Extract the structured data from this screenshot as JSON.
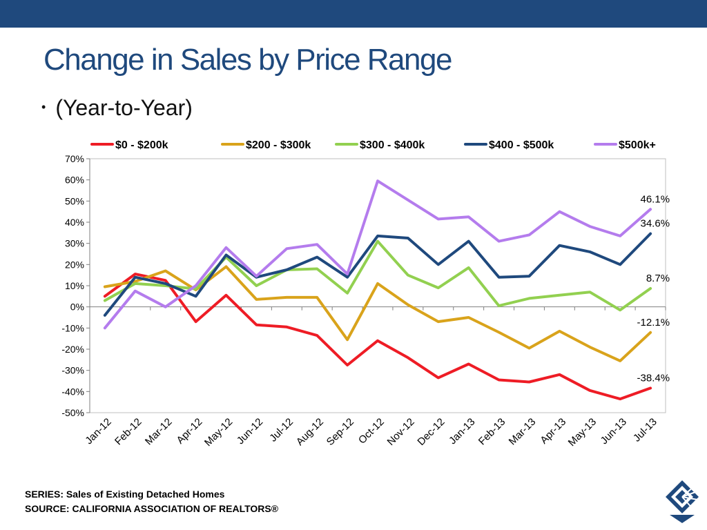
{
  "slide": {
    "title": "Change in Sales by Price Range",
    "bullet": "(Year-to-Year)",
    "footer_series": "SERIES: Sales of Existing Detached Homes",
    "footer_source": "SOURCE:  CALIFORNIA ASSOCIATION OF REALTORS®",
    "logo_icon": "car-logo-icon",
    "colors": {
      "topbar": "#1f497d",
      "title": "#1f497d"
    }
  },
  "chart_data": {
    "type": "line",
    "title": "",
    "xlabel": "",
    "ylabel": "",
    "ylim": [
      -50,
      70
    ],
    "yticks": [
      70,
      60,
      50,
      40,
      30,
      20,
      10,
      0,
      -10,
      -20,
      -30,
      -40,
      -50
    ],
    "ytick_labels": [
      "70%",
      "60%",
      "50%",
      "40%",
      "30%",
      "20%",
      "10%",
      "0%",
      "-10%",
      "-20%",
      "-30%",
      "-40%",
      "-50%"
    ],
    "categories": [
      "Jan-12",
      "Feb-12",
      "Mar-12",
      "Apr-12",
      "May-12",
      "Jun-12",
      "Jul-12",
      "Aug-12",
      "Sep-12",
      "Oct-12",
      "Nov-12",
      "Dec-12",
      "Jan-13",
      "Feb-13",
      "Mar-13",
      "Apr-13",
      "May-13",
      "Jun-13",
      "Jul-13"
    ],
    "legend_position": "top",
    "grid": false,
    "series": [
      {
        "name": "$0 - $200k",
        "color": "#ee1c25",
        "end_label": "-38.4%",
        "values": [
          5,
          15.5,
          12.5,
          -7,
          5.5,
          -8.5,
          -9.5,
          -13.5,
          -27.5,
          -16,
          -24,
          -33.5,
          -27,
          -34.5,
          -35.5,
          -32,
          -39.5,
          -43.5,
          -38.4
        ]
      },
      {
        "name": "$200 - $300k",
        "color": "#d9a31b",
        "end_label": "-12.1%",
        "values": [
          9.5,
          12,
          17,
          8,
          19,
          3.5,
          4.5,
          4.5,
          -15.5,
          11,
          1,
          -7,
          -5,
          -12,
          -19.5,
          -11.5,
          -19,
          -25.5,
          -12.1
        ]
      },
      {
        "name": "$300 - $400k",
        "color": "#92d050",
        "end_label": "8.7%",
        "values": [
          3,
          11,
          10,
          8.5,
          23.5,
          10,
          17.5,
          18,
          6.5,
          31,
          15,
          9,
          18.5,
          0.5,
          4,
          5.5,
          7,
          -1.5,
          8.7
        ]
      },
      {
        "name": "$400 - $500k",
        "color": "#1f497d",
        "end_label": "34.6%",
        "values": [
          -4,
          14,
          11,
          5,
          24.5,
          14,
          17.5,
          23.5,
          14,
          33.5,
          32.5,
          20,
          31,
          14,
          14.5,
          29,
          26,
          20,
          34.6
        ]
      },
      {
        "name": "$500k+",
        "color": "#b47ced",
        "end_label": "46.1%",
        "values": [
          -10,
          7.5,
          0,
          10,
          28,
          14.5,
          27.5,
          29.5,
          15.5,
          59.5,
          50.5,
          41.5,
          42.5,
          31,
          34,
          45,
          38,
          33.5,
          46.1
        ]
      }
    ]
  }
}
